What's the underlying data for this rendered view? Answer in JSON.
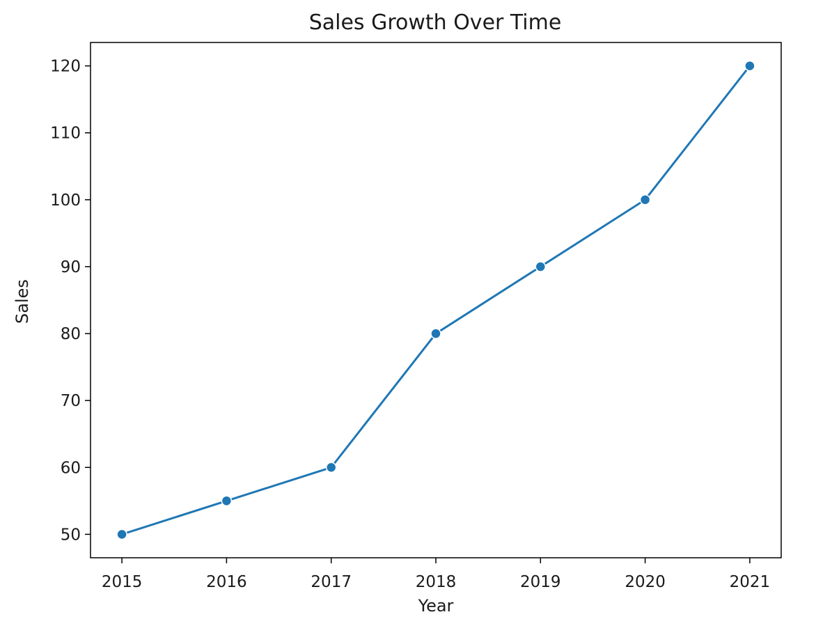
{
  "chart_data": {
    "type": "line",
    "title": "Sales Growth Over Time",
    "xlabel": "Year",
    "ylabel": "Sales",
    "x": [
      2015,
      2016,
      2017,
      2018,
      2019,
      2020,
      2021
    ],
    "series": [
      {
        "values": [
          50,
          55,
          60,
          80,
          90,
          100,
          120
        ]
      }
    ],
    "xlim": [
      2014.7,
      2021.3
    ],
    "ylim": [
      46.5,
      123.5
    ],
    "xticks": [
      "2015",
      "2016",
      "2017",
      "2018",
      "2019",
      "2020",
      "2021"
    ],
    "yticks": [
      "50",
      "60",
      "70",
      "80",
      "90",
      "100",
      "110",
      "120"
    ],
    "grid": false,
    "marker": "circle",
    "colors": {
      "line": "#1f77b4",
      "marker_edge": "#ffffff",
      "axes": "#000000"
    }
  }
}
